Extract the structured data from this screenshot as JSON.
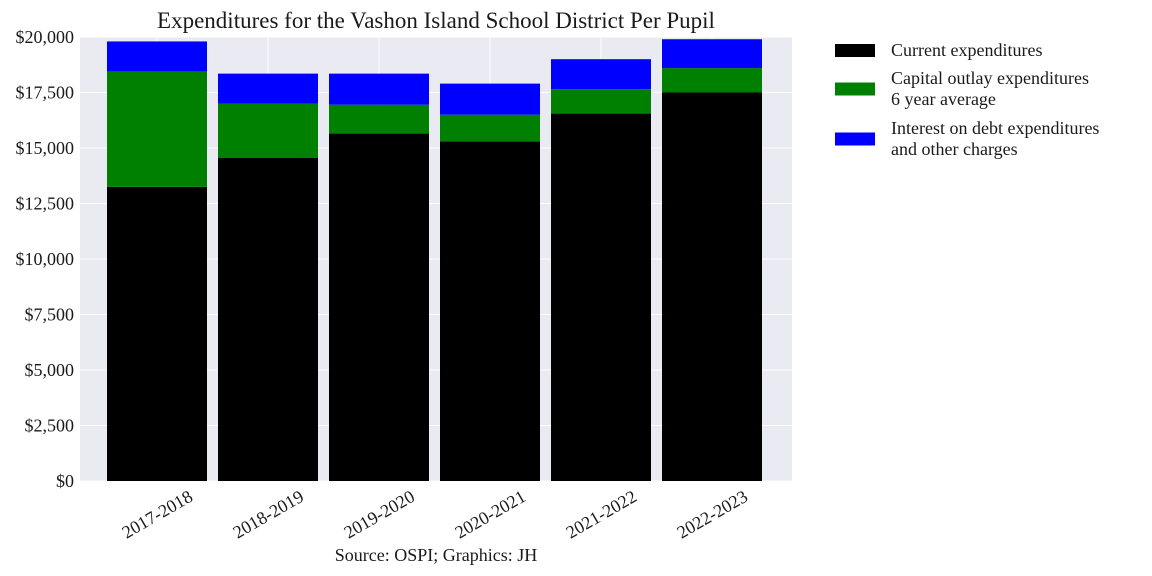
{
  "chart_data": {
    "type": "bar",
    "stacked": true,
    "title": "Expenditures for the Vashon Island School District Per Pupil",
    "source_note": "Source: OSPI; Graphics: JH",
    "xlabel": "",
    "ylabel": "",
    "categories": [
      "2017-2018",
      "2018-2019",
      "2019-2020",
      "2020-2021",
      "2021-2022",
      "2022-2023"
    ],
    "series": [
      {
        "name": "Current expenditures",
        "color": "#000000",
        "values": [
          13250,
          14550,
          15650,
          15300,
          16550,
          17500
        ]
      },
      {
        "name": "Capital outlay expenditures\n6 year average",
        "color": "#008000",
        "values": [
          5200,
          2450,
          1300,
          1200,
          1100,
          1100
        ]
      },
      {
        "name": "Interest on debt expenditures\nand other charges",
        "color": "#0000ff",
        "values": [
          1350,
          1350,
          1400,
          1400,
          1350,
          1300
        ]
      }
    ],
    "ylim": [
      0,
      20000
    ],
    "yticks": [
      0,
      2500,
      5000,
      7500,
      10000,
      12500,
      15000,
      17500,
      20000
    ],
    "ytick_labels": [
      "$0",
      "$2,500",
      "$5,000",
      "$7,500",
      "$10,000",
      "$12,500",
      "$15,000",
      "$17,500",
      "$20,000"
    ],
    "grid": true,
    "legend_position": "outside-right",
    "x_tick_rotation": "angled",
    "background_color": "#eaeaf2",
    "grid_color": "#ffffff"
  }
}
